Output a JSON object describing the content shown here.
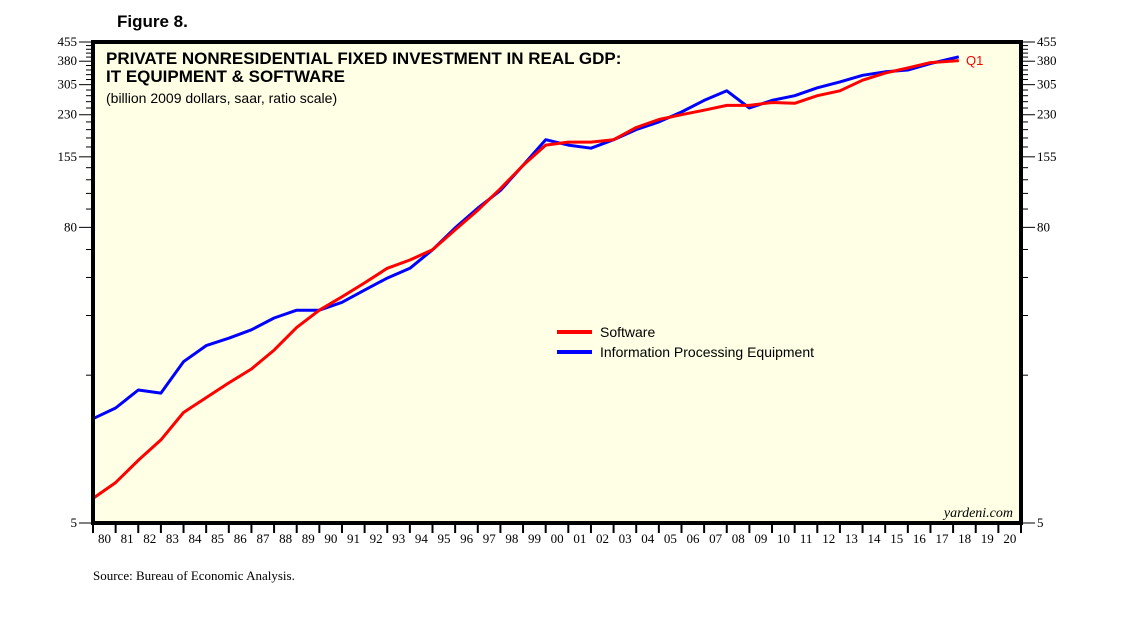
{
  "figure_label": "Figure 8.",
  "source": "Source: Bureau of Economic Analysis.",
  "watermark": "yardeni.com",
  "chart_data": {
    "type": "line",
    "title_line1": "PRIVATE NONRESIDENTIAL FIXED INVESTMENT IN REAL GDP:",
    "title_line2": "IT EQUIPMENT & SOFTWARE",
    "subtitle": "(billion 2009 dollars, saar, ratio scale)",
    "xlabel": "",
    "ylabel": "",
    "y_scale": "log",
    "ylim": [
      5,
      455
    ],
    "xlim": [
      1980,
      2021
    ],
    "y_ticks": [
      5,
      80,
      155,
      230,
      305,
      380,
      455
    ],
    "y_tick_labels": [
      "5",
      "80",
      "155",
      "230",
      "305",
      "380",
      "455"
    ],
    "right_axis_tick_labels": [
      "5",
      "80",
      "155",
      "230",
      "305",
      "380",
      "455"
    ],
    "x_tick_labels": [
      "80",
      "81",
      "82",
      "83",
      "84",
      "85",
      "86",
      "87",
      "88",
      "89",
      "90",
      "91",
      "92",
      "93",
      "94",
      "95",
      "96",
      "97",
      "98",
      "99",
      "00",
      "01",
      "02",
      "03",
      "04",
      "05",
      "06",
      "07",
      "08",
      "09",
      "10",
      "11",
      "12",
      "13",
      "14",
      "15",
      "16",
      "17",
      "18",
      "19",
      "20"
    ],
    "grid": false,
    "legend_position": "center-right",
    "end_annotation": "Q1",
    "x": [
      1980,
      1981,
      1982,
      1983,
      1984,
      1985,
      1986,
      1987,
      1988,
      1989,
      1990,
      1991,
      1992,
      1993,
      1994,
      1995,
      1996,
      1997,
      1998,
      1999,
      2000,
      2001,
      2002,
      2003,
      2004,
      2005,
      2006,
      2007,
      2008,
      2009,
      2010,
      2011,
      2012,
      2013,
      2014,
      2015,
      2016,
      2017,
      2018.25
    ],
    "series": [
      {
        "name": "Software",
        "color": "#ff0000",
        "values": [
          6.3,
          7.3,
          9.0,
          10.9,
          14.1,
          16.2,
          18.6,
          21.2,
          25.3,
          31.3,
          36.8,
          41.7,
          47.5,
          54.5,
          58.9,
          64.8,
          78.1,
          94.0,
          115,
          143,
          173,
          178,
          178,
          182,
          204,
          220,
          230,
          240,
          251,
          251,
          258,
          256,
          275,
          288,
          318,
          340,
          357,
          375,
          382
        ]
      },
      {
        "name": "Information Processing Equipment",
        "color": "#0000ff",
        "values": [
          13.3,
          14.7,
          17.4,
          16.9,
          22.7,
          26.4,
          28.3,
          30.6,
          34.2,
          36.8,
          36.8,
          39.6,
          44.4,
          49.7,
          54.5,
          64.8,
          79.6,
          95.8,
          113,
          143,
          182,
          173,
          168,
          182,
          200,
          215,
          236,
          263,
          288,
          245,
          263,
          275,
          296,
          313,
          333,
          344,
          350,
          372,
          396
        ]
      }
    ]
  }
}
